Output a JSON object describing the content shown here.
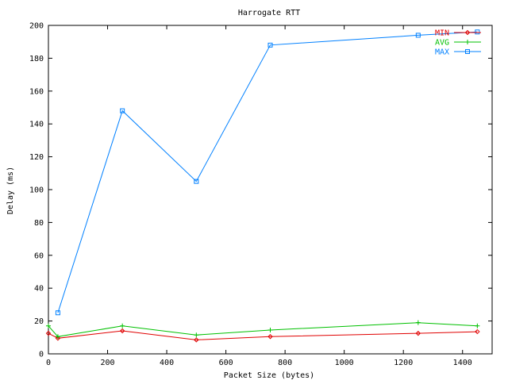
{
  "chart_data": {
    "type": "line",
    "title": "Harrogate RTT",
    "xlabel": "Packet Size (bytes)",
    "ylabel": "Delay (ms)",
    "xlim": [
      0,
      1500
    ],
    "ylim": [
      0,
      200
    ],
    "xticks": [
      0,
      200,
      400,
      600,
      800,
      1000,
      1200,
      1400
    ],
    "yticks": [
      0,
      20,
      40,
      60,
      80,
      100,
      120,
      140,
      160,
      180,
      200
    ],
    "grid": false,
    "legend_position": "top-right",
    "series": [
      {
        "name": "MIN",
        "color": "#e00000",
        "marker": "diamond",
        "x": [
          0,
          32,
          250,
          500,
          750,
          1250,
          1450
        ],
        "y": [
          12.5,
          9.5,
          14,
          8.5,
          10.5,
          12.5,
          13.5
        ]
      },
      {
        "name": "AVG",
        "color": "#00c000",
        "marker": "plus",
        "x": [
          0,
          32,
          250,
          500,
          750,
          1250,
          1450
        ],
        "y": [
          17,
          10.5,
          17,
          11.5,
          14.5,
          19,
          17
        ]
      },
      {
        "name": "MAX",
        "color": "#0080ff",
        "marker": "square",
        "x": [
          32,
          250,
          500,
          750,
          1250,
          1450
        ],
        "y": [
          25,
          148,
          105,
          188,
          194,
          196
        ]
      }
    ]
  }
}
